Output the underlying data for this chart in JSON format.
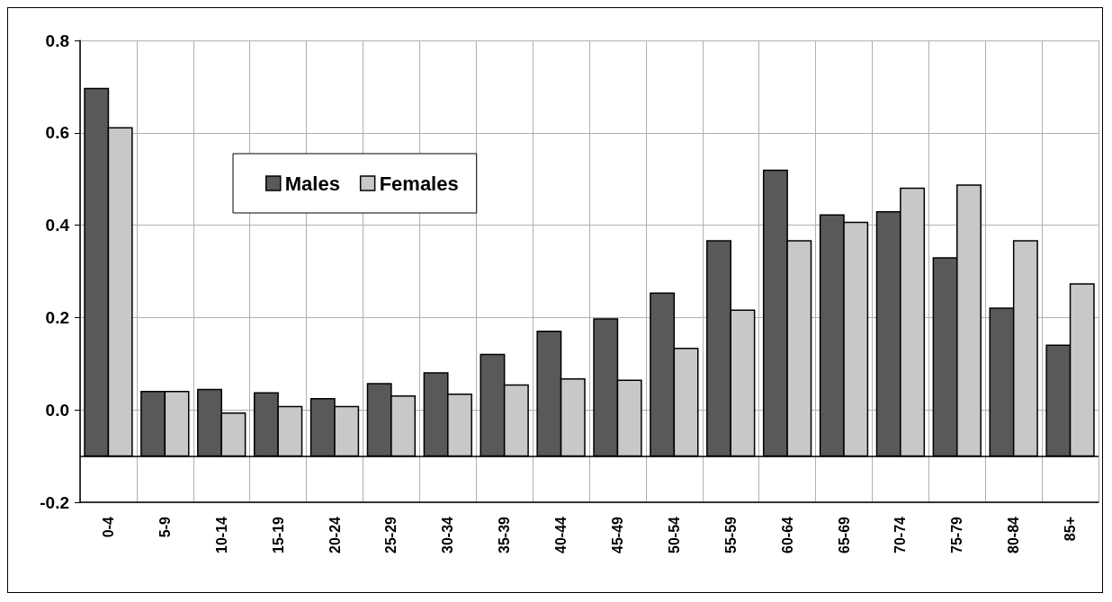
{
  "chart_data": {
    "type": "bar",
    "categories": [
      "0-4",
      "5-9",
      "10-14",
      "15-19",
      "20-24",
      "25-29",
      "30-34",
      "35-39",
      "40-44",
      "45-49",
      "50-54",
      "55-59",
      "60-64",
      "65-69",
      "70-74",
      "75-79",
      "80-84",
      "85+"
    ],
    "series": [
      {
        "name": "Males",
        "color": "#595959",
        "base": [
          -0.1,
          -0.1,
          -0.1,
          -0.1,
          -0.1,
          -0.1,
          -0.1,
          -0.1,
          -0.1,
          -0.1,
          -0.1,
          -0.1,
          -0.1,
          -0.1,
          -0.1,
          -0.1,
          -0.1,
          -0.1
        ],
        "values": [
          0.796,
          0.14,
          0.144,
          0.137,
          0.124,
          0.157,
          0.18,
          0.22,
          0.27,
          0.297,
          0.353,
          0.466,
          0.619,
          0.522,
          0.529,
          0.429,
          0.32,
          0.24
        ]
      },
      {
        "name": "Females",
        "color": "#c8c8c8",
        "base": [
          -0.1,
          -0.1,
          -0.1,
          -0.1,
          -0.1,
          -0.1,
          -0.1,
          -0.1,
          -0.1,
          -0.1,
          -0.1,
          -0.1,
          -0.1,
          -0.1,
          -0.1,
          -0.1,
          -0.1,
          -0.1
        ],
        "values": [
          0.711,
          0.14,
          0.093,
          0.107,
          0.107,
          0.13,
          0.134,
          0.154,
          0.167,
          0.164,
          0.233,
          0.316,
          0.466,
          0.506,
          0.58,
          0.587,
          0.466,
          0.373
        ]
      }
    ],
    "ylim": [
      -0.2,
      0.8
    ],
    "yticks": [
      {
        "value": -0.2,
        "label": "-0.2"
      },
      {
        "value": 0,
        "label": "0.0"
      },
      {
        "value": 0.2,
        "label": "0.2"
      },
      {
        "value": 0.4,
        "label": "0.4"
      },
      {
        "value": 0.6,
        "label": "0.6"
      },
      {
        "value": 0.8,
        "label": "0.8"
      }
    ],
    "ref_lines": [
      {
        "axis": "y",
        "value": -0.1,
        "color": "#000000",
        "line_style": "solid"
      }
    ],
    "grid": true,
    "legend": "top left"
  }
}
